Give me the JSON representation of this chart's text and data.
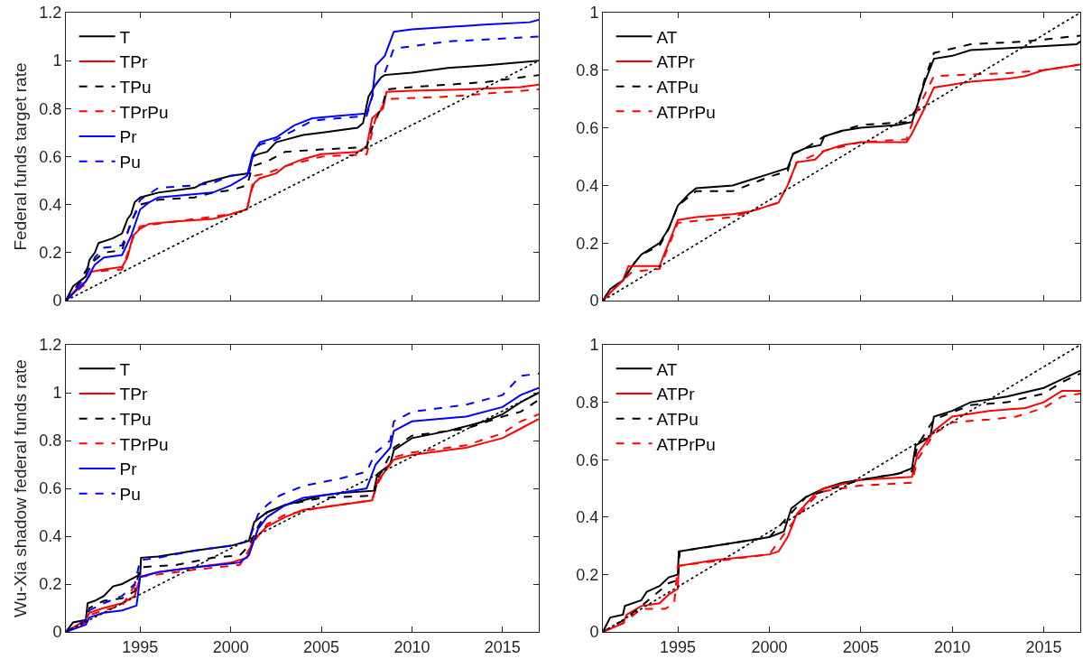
{
  "chart_data": [
    {
      "type": "line",
      "ylabel": "Federal funds target rate",
      "xlim": [
        1990.9,
        2017
      ],
      "xticks": [
        1995,
        2000,
        2005,
        2010,
        2015
      ],
      "ylim": [
        0,
        1.2
      ],
      "yticks": [
        0,
        0.2,
        0.4,
        0.6,
        0.8,
        1,
        1.2
      ],
      "tick_labels": "y",
      "legend": "top left",
      "series": [
        {
          "name": "T",
          "color": "#000000",
          "line_style": "solid",
          "x": [
            1990.9,
            1991.3,
            1992,
            1992.2,
            1992.5,
            1992.7,
            1993.5,
            1994,
            1994.3,
            1994.5,
            1994.7,
            1995,
            1996,
            1998,
            1998.5,
            1999,
            2000,
            2001,
            2001.2,
            2001.5,
            2002,
            2002.5,
            2003,
            2004,
            2005,
            2007,
            2007.3,
            2007.6,
            2008,
            2008.3,
            2008.5,
            2010,
            2012,
            2014,
            2017
          ],
          "values": [
            0,
            0.06,
            0.1,
            0.17,
            0.2,
            0.24,
            0.26,
            0.28,
            0.34,
            0.36,
            0.41,
            0.43,
            0.45,
            0.47,
            0.49,
            0.5,
            0.52,
            0.53,
            0.6,
            0.61,
            0.62,
            0.66,
            0.67,
            0.69,
            0.7,
            0.72,
            0.74,
            0.85,
            0.9,
            0.93,
            0.94,
            0.95,
            0.97,
            0.98,
            1.0
          ]
        },
        {
          "name": "TPr",
          "color": "#ff0000",
          "line_style": "solid",
          "x": [
            1990.9,
            1991.5,
            1992,
            1992.3,
            1993,
            1994,
            1994.3,
            1994.6,
            1995,
            1995.5,
            1997,
            1999,
            2000,
            2000.9,
            2001.1,
            2001.3,
            2001.6,
            2002.5,
            2003,
            2004,
            2005,
            2007,
            2007.5,
            2007.8,
            2008.4,
            2008.6,
            2010,
            2013,
            2016,
            2017
          ],
          "values": [
            0,
            0.05,
            0.08,
            0.12,
            0.13,
            0.14,
            0.18,
            0.27,
            0.3,
            0.32,
            0.33,
            0.34,
            0.36,
            0.38,
            0.45,
            0.49,
            0.51,
            0.53,
            0.56,
            0.59,
            0.61,
            0.62,
            0.64,
            0.76,
            0.8,
            0.87,
            0.875,
            0.88,
            0.89,
            0.9
          ]
        },
        {
          "name": "TPu",
          "color": "#000000",
          "line_style": "dashed",
          "x": [
            1990.9,
            1991.5,
            1992.2,
            1993,
            1994,
            1994.5,
            1995,
            1996,
            1998,
            1999,
            2000,
            2000.9,
            2001.2,
            2002,
            2003,
            2005,
            2007.5,
            2007.8,
            2008.4,
            2008.6,
            2010,
            2014,
            2017
          ],
          "values": [
            0,
            0.06,
            0.15,
            0.2,
            0.21,
            0.33,
            0.4,
            0.42,
            0.43,
            0.45,
            0.46,
            0.48,
            0.56,
            0.58,
            0.62,
            0.63,
            0.64,
            0.72,
            0.82,
            0.88,
            0.89,
            0.91,
            0.94
          ]
        },
        {
          "name": "TPrPu",
          "color": "#ff0000",
          "line_style": "dashed",
          "x": [
            1990.9,
            1991.5,
            1992,
            1992.3,
            1994,
            1994.6,
            1995,
            1997,
            2000,
            2000.9,
            2001.3,
            2002,
            2003,
            2005,
            2007.5,
            2008,
            2008.6,
            2012,
            2017
          ],
          "values": [
            0,
            0.04,
            0.07,
            0.12,
            0.13,
            0.26,
            0.31,
            0.33,
            0.36,
            0.38,
            0.52,
            0.53,
            0.56,
            0.6,
            0.61,
            0.76,
            0.84,
            0.85,
            0.88
          ]
        },
        {
          "name": "Pr",
          "color": "#0000ff",
          "line_style": "solid",
          "x": [
            1990.9,
            1992,
            1992.5,
            1993,
            1994,
            1994.5,
            1995,
            1995.5,
            1996,
            1999,
            2000,
            2000.9,
            2001.2,
            2001.6,
            2002.5,
            2003.5,
            2004.5,
            2006,
            2007.5,
            2007.8,
            2008,
            2008.5,
            2009,
            2010,
            2014,
            2016.5,
            2017
          ],
          "values": [
            0,
            0.08,
            0.15,
            0.18,
            0.19,
            0.27,
            0.38,
            0.41,
            0.43,
            0.45,
            0.48,
            0.52,
            0.61,
            0.66,
            0.68,
            0.73,
            0.76,
            0.77,
            0.78,
            0.85,
            0.98,
            1.02,
            1.12,
            1.13,
            1.15,
            1.16,
            1.17
          ]
        },
        {
          "name": "Pu",
          "color": "#0000ff",
          "line_style": "dashed",
          "x": [
            1990.9,
            1992,
            1992.5,
            1993,
            1994,
            1994.5,
            1995,
            1996,
            1998,
            1999,
            2000,
            2001,
            2001.2,
            2001.6,
            2002.5,
            2003.5,
            2004.5,
            2007.5,
            2008,
            2008.5,
            2009,
            2010,
            2012,
            2017
          ],
          "values": [
            0,
            0.1,
            0.18,
            0.22,
            0.23,
            0.32,
            0.42,
            0.47,
            0.48,
            0.49,
            0.52,
            0.53,
            0.6,
            0.65,
            0.67,
            0.71,
            0.75,
            0.77,
            0.9,
            0.95,
            1.05,
            1.06,
            1.08,
            1.1
          ]
        },
        {
          "color": "#000000",
          "line_style": "dotted",
          "x": [
            1990.9,
            2017
          ],
          "values": [
            0,
            1
          ]
        }
      ]
    },
    {
      "type": "line",
      "xlim": [
        1990.9,
        2017
      ],
      "xticks": [
        1995,
        2000,
        2005,
        2010,
        2015
      ],
      "ylim": [
        0,
        1
      ],
      "yticks": [
        0,
        0.2,
        0.4,
        0.6,
        0.8,
        1
      ],
      "tick_labels": "y",
      "legend": "top left",
      "series": [
        {
          "name": "AT",
          "color": "#000000",
          "line_style": "solid",
          "x": [
            1990.9,
            1991.3,
            1992,
            1992.5,
            1993,
            1993.5,
            1994,
            1994.5,
            1995,
            1995.6,
            1996,
            1998,
            1999,
            2000,
            2001,
            2001.3,
            2002,
            2002.8,
            2003,
            2004,
            2005,
            2007,
            2007.8,
            2008,
            2008.5,
            2009,
            2010,
            2011,
            2014,
            2016.8,
            2017
          ],
          "values": [
            0,
            0.04,
            0.07,
            0.12,
            0.16,
            0.18,
            0.2,
            0.25,
            0.33,
            0.37,
            0.39,
            0.4,
            0.42,
            0.44,
            0.46,
            0.51,
            0.53,
            0.54,
            0.57,
            0.59,
            0.6,
            0.61,
            0.62,
            0.66,
            0.76,
            0.84,
            0.85,
            0.87,
            0.88,
            0.89,
            0.9
          ]
        },
        {
          "name": "ATPr",
          "color": "#ff0000",
          "line_style": "solid",
          "x": [
            1990.9,
            1991.5,
            1992,
            1992.3,
            1994,
            1994.5,
            1995,
            1996,
            1998,
            1999,
            2000.5,
            2001,
            2001.5,
            2002.5,
            2003,
            2004,
            2005,
            2007.5,
            2007.8,
            2008.5,
            2009,
            2011,
            2013,
            2014,
            2015,
            2017
          ],
          "values": [
            0,
            0.04,
            0.07,
            0.12,
            0.12,
            0.2,
            0.28,
            0.29,
            0.3,
            0.31,
            0.34,
            0.4,
            0.48,
            0.49,
            0.52,
            0.54,
            0.55,
            0.55,
            0.58,
            0.67,
            0.74,
            0.76,
            0.77,
            0.78,
            0.8,
            0.82
          ]
        },
        {
          "name": "ATPu",
          "color": "#000000",
          "line_style": "dashed",
          "x": [
            1990.9,
            1991.3,
            1992,
            1992.5,
            1993,
            1994,
            1994.5,
            1995,
            1996,
            1998,
            2000,
            2001,
            2001.3,
            2002,
            2003,
            2005,
            2007.5,
            2008,
            2008.5,
            2009,
            2011,
            2014,
            2017
          ],
          "values": [
            0,
            0.04,
            0.07,
            0.12,
            0.16,
            0.19,
            0.25,
            0.33,
            0.38,
            0.38,
            0.43,
            0.45,
            0.51,
            0.53,
            0.57,
            0.61,
            0.62,
            0.66,
            0.77,
            0.86,
            0.89,
            0.9,
            0.92
          ]
        },
        {
          "name": "ATPrPu",
          "color": "#ff0000",
          "line_style": "dashed",
          "x": [
            1990.9,
            1991.5,
            1992,
            1992.5,
            1994,
            1994.5,
            1995,
            1998,
            1999,
            2000.5,
            2001,
            2001.5,
            2003,
            2005,
            2007.5,
            2008,
            2009,
            2013,
            2015,
            2017
          ],
          "values": [
            0,
            0.04,
            0.07,
            0.1,
            0.11,
            0.19,
            0.27,
            0.29,
            0.31,
            0.34,
            0.4,
            0.48,
            0.52,
            0.55,
            0.56,
            0.65,
            0.78,
            0.79,
            0.8,
            0.82
          ]
        },
        {
          "color": "#000000",
          "line_style": "dotted",
          "x": [
            1990.9,
            2017
          ],
          "values": [
            0,
            1
          ]
        }
      ]
    },
    {
      "type": "line",
      "ylabel": "Wu-Xia shadow federal funds rate",
      "xlim": [
        1990.9,
        2017
      ],
      "xticks": [
        1995,
        2000,
        2005,
        2010,
        2015
      ],
      "ylim": [
        0,
        1.2
      ],
      "yticks": [
        0,
        0.2,
        0.4,
        0.6,
        0.8,
        1,
        1.2
      ],
      "legend": "top left",
      "series": [
        {
          "name": "T",
          "color": "#000000",
          "line_style": "solid",
          "x": [
            1990.9,
            1991.3,
            1992,
            1992.1,
            1992.5,
            1993,
            1993.5,
            1994,
            1994.5,
            1995,
            1995.05,
            1996,
            1998,
            2000,
            2001,
            2001.3,
            2002,
            2003,
            2004,
            2005,
            2006,
            2007.9,
            2008.1,
            2008.8,
            2009,
            2010,
            2012,
            2013,
            2014,
            2015,
            2016,
            2017
          ],
          "values": [
            0,
            0.04,
            0.05,
            0.12,
            0.13,
            0.15,
            0.19,
            0.2,
            0.22,
            0.24,
            0.31,
            0.315,
            0.34,
            0.36,
            0.38,
            0.46,
            0.5,
            0.53,
            0.55,
            0.57,
            0.58,
            0.59,
            0.66,
            0.7,
            0.76,
            0.81,
            0.84,
            0.86,
            0.88,
            0.91,
            0.96,
            1.0
          ]
        },
        {
          "name": "TPr",
          "color": "#ff0000",
          "line_style": "solid",
          "x": [
            1990.9,
            1992,
            1992.2,
            1993,
            1994,
            1994.7,
            1995,
            1996,
            1998,
            2000,
            2000.9,
            2001.2,
            2002,
            2003,
            2004,
            2005,
            2007.8,
            2008.1,
            2009,
            2010,
            2013,
            2014,
            2015,
            2016,
            2017
          ],
          "values": [
            0,
            0.05,
            0.08,
            0.1,
            0.12,
            0.15,
            0.23,
            0.25,
            0.27,
            0.29,
            0.31,
            0.38,
            0.44,
            0.48,
            0.51,
            0.52,
            0.55,
            0.63,
            0.72,
            0.74,
            0.77,
            0.79,
            0.81,
            0.85,
            0.89
          ]
        },
        {
          "name": "TPu",
          "color": "#000000",
          "line_style": "dashed",
          "x": [
            1990.9,
            1992,
            1992.2,
            1993,
            1994,
            1994.7,
            1995,
            1997,
            1999,
            2000.5,
            2001,
            2001.5,
            2002,
            2003,
            2005,
            2007.9,
            2008.1,
            2009,
            2010,
            2013,
            2015,
            2016,
            2017
          ],
          "values": [
            0,
            0.04,
            0.1,
            0.13,
            0.14,
            0.17,
            0.27,
            0.28,
            0.31,
            0.32,
            0.36,
            0.44,
            0.5,
            0.53,
            0.56,
            0.57,
            0.64,
            0.77,
            0.82,
            0.85,
            0.9,
            0.92,
            0.97
          ]
        },
        {
          "name": "TPrPu",
          "color": "#ff0000",
          "line_style": "dashed",
          "x": [
            1990.9,
            1992,
            1992.2,
            1993,
            1994,
            1995,
            1998,
            2000.5,
            2001.3,
            2002,
            2003,
            2005,
            2007.8,
            2008.1,
            2009,
            2010,
            2013,
            2015,
            2016,
            2017
          ],
          "values": [
            0,
            0.04,
            0.07,
            0.09,
            0.11,
            0.23,
            0.26,
            0.28,
            0.38,
            0.45,
            0.49,
            0.52,
            0.55,
            0.62,
            0.73,
            0.75,
            0.78,
            0.83,
            0.88,
            0.91
          ]
        },
        {
          "name": "Pr",
          "color": "#0000ff",
          "line_style": "solid",
          "x": [
            1990.9,
            1992,
            1992.2,
            1993,
            1994,
            1994.8,
            1995,
            1996,
            1998,
            2000.5,
            2001,
            2001.5,
            2002,
            2003,
            2004,
            2006,
            2007.5,
            2008,
            2008.8,
            2009,
            2010,
            2013,
            2015,
            2016,
            2017
          ],
          "values": [
            0,
            0.03,
            0.06,
            0.08,
            0.09,
            0.11,
            0.23,
            0.25,
            0.27,
            0.29,
            0.32,
            0.43,
            0.48,
            0.53,
            0.56,
            0.58,
            0.6,
            0.7,
            0.77,
            0.84,
            0.88,
            0.9,
            0.94,
            0.99,
            1.02
          ]
        },
        {
          "name": "Pu",
          "color": "#0000ff",
          "line_style": "dashed",
          "x": [
            1990.9,
            1992,
            1992.2,
            1993,
            1994,
            1994.7,
            1995,
            1996,
            1998,
            2000,
            2001,
            2001.5,
            2002,
            2002.7,
            2004,
            2006,
            2007.5,
            2008,
            2008.8,
            2009,
            2010,
            2013,
            2015,
            2016,
            2017
          ],
          "values": [
            0,
            0.05,
            0.09,
            0.12,
            0.15,
            0.2,
            0.3,
            0.31,
            0.34,
            0.36,
            0.38,
            0.49,
            0.53,
            0.57,
            0.61,
            0.64,
            0.67,
            0.75,
            0.8,
            0.88,
            0.92,
            0.95,
            0.99,
            1.07,
            1.08
          ]
        },
        {
          "color": "#000000",
          "line_style": "dotted",
          "x": [
            1990.9,
            2017
          ],
          "values": [
            0,
            1
          ]
        }
      ]
    },
    {
      "type": "line",
      "xlim": [
        1990.9,
        2017
      ],
      "xticks": [
        1995,
        2000,
        2005,
        2010,
        2015
      ],
      "ylim": [
        0,
        1
      ],
      "yticks": [
        0,
        0.2,
        0.4,
        0.6,
        0.8,
        1
      ],
      "legend": "top left",
      "series": [
        {
          "name": "AT",
          "color": "#000000",
          "line_style": "solid",
          "x": [
            1990.9,
            1991.3,
            1992,
            1992.1,
            1993,
            1993.3,
            1994,
            1994.5,
            1995,
            1995.05,
            1996,
            1998,
            2000,
            2000.8,
            2001.2,
            2002,
            2003,
            2004,
            2005,
            2007,
            2007.8,
            2008,
            2008.8,
            2009,
            2010,
            2011,
            2013,
            2015,
            2016,
            2017
          ],
          "values": [
            0,
            0.05,
            0.06,
            0.09,
            0.11,
            0.14,
            0.16,
            0.19,
            0.2,
            0.28,
            0.29,
            0.31,
            0.33,
            0.35,
            0.43,
            0.47,
            0.5,
            0.52,
            0.53,
            0.55,
            0.57,
            0.65,
            0.68,
            0.75,
            0.77,
            0.8,
            0.82,
            0.85,
            0.88,
            0.91
          ]
        },
        {
          "name": "ATPr",
          "color": "#ff0000",
          "line_style": "solid",
          "x": [
            1990.9,
            1992,
            1992.2,
            1993,
            1994,
            1994.5,
            1995,
            1995.05,
            1997,
            2000,
            2000.5,
            2001,
            2001.5,
            2002.5,
            2003,
            2005,
            2007.8,
            2008.1,
            2009,
            2010,
            2012,
            2014,
            2015,
            2016,
            2017
          ],
          "values": [
            0,
            0.03,
            0.06,
            0.09,
            0.1,
            0.13,
            0.15,
            0.23,
            0.25,
            0.27,
            0.28,
            0.33,
            0.41,
            0.48,
            0.5,
            0.53,
            0.54,
            0.62,
            0.7,
            0.75,
            0.77,
            0.78,
            0.8,
            0.84,
            0.84
          ]
        },
        {
          "name": "ATPu",
          "color": "#000000",
          "line_style": "dashed",
          "x": [
            1990.9,
            1992,
            1993,
            1994.5,
            1995,
            1995.1,
            2000,
            2002,
            2005,
            2007.8,
            2008.1,
            2009,
            2011,
            2013,
            2015,
            2016,
            2017
          ],
          "values": [
            0,
            0.04,
            0.09,
            0.17,
            0.18,
            0.28,
            0.33,
            0.47,
            0.53,
            0.56,
            0.65,
            0.74,
            0.79,
            0.8,
            0.83,
            0.87,
            0.9
          ]
        },
        {
          "name": "ATPrPu",
          "color": "#ff0000",
          "line_style": "dashed",
          "x": [
            1990.9,
            1992,
            1993,
            1994.3,
            1994.8,
            1995,
            2000,
            2001.5,
            2002.5,
            2003,
            2005,
            2007.8,
            2008.1,
            2009,
            2010,
            2012,
            2013.5,
            2015,
            2016,
            2017
          ],
          "values": [
            0,
            0.03,
            0.08,
            0.08,
            0.1,
            0.23,
            0.27,
            0.4,
            0.47,
            0.49,
            0.51,
            0.52,
            0.6,
            0.69,
            0.73,
            0.74,
            0.75,
            0.78,
            0.82,
            0.83
          ]
        },
        {
          "color": "#000000",
          "line_style": "dotted",
          "x": [
            1990.9,
            2017
          ],
          "values": [
            0,
            1
          ]
        }
      ]
    }
  ]
}
